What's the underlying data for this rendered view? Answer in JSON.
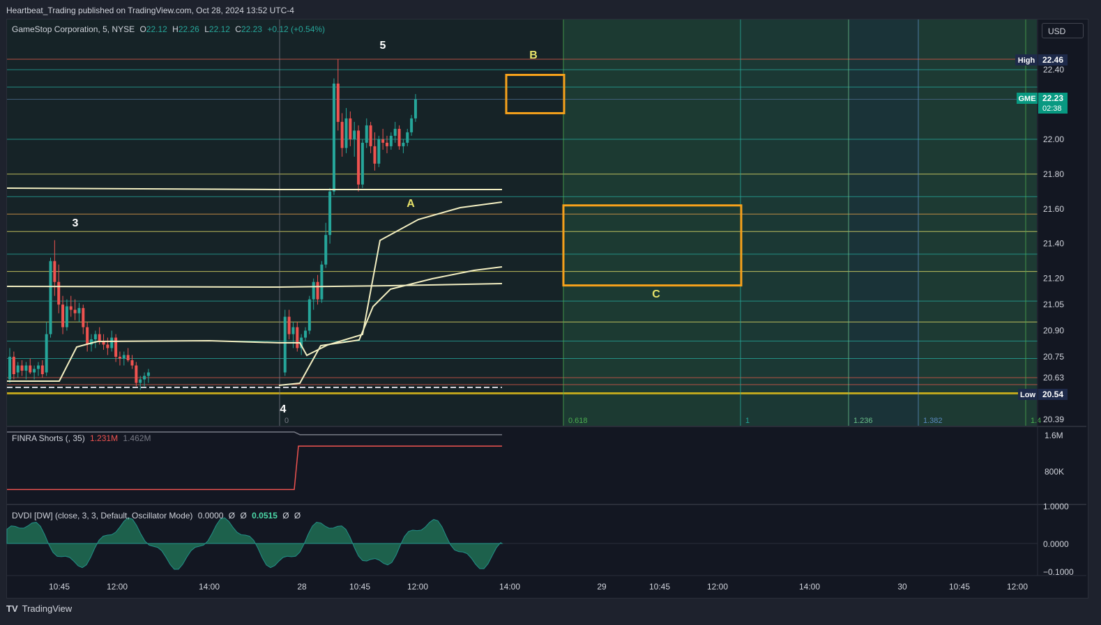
{
  "header": {
    "publisher_line": "Heartbeat_Trading published on TradingView.com, Oct 28, 2024 13:52 UTC-4"
  },
  "legend": {
    "symbol": "GameStop Corporation, 5, NYSE",
    "o_label": "O",
    "o_value": "22.12",
    "h_label": "H",
    "h_value": "22.26",
    "l_label": "L",
    "l_value": "22.12",
    "c_label": "C",
    "c_value": "22.23",
    "change": "+0.12 (+0.54%)"
  },
  "currency_button": "USD",
  "price_axis": {
    "ticks": [
      "22.40",
      "22.00",
      "21.80",
      "21.60",
      "21.40",
      "21.20",
      "21.05",
      "20.90",
      "20.75",
      "20.63",
      "20.39"
    ],
    "high_label": "High",
    "high_value": "22.46",
    "symbol_tag": "GME",
    "last_price": "22.23",
    "countdown": "02:38",
    "low_label": "Low",
    "low_value": "20.54"
  },
  "time_axis": {
    "ticks": [
      "10:45",
      "12:00",
      "14:00",
      "28",
      "10:45",
      "12:00",
      "14:00",
      "29",
      "10:45",
      "12:00",
      "14:00",
      "30",
      "10:45",
      "12:00"
    ]
  },
  "fib_time_labels": [
    "0",
    "0.618",
    "1",
    "1.236",
    "1.382",
    "1.4"
  ],
  "wave_labels": [
    "5",
    "3",
    "4",
    "A",
    "B",
    "C"
  ],
  "finra": {
    "title": "FINRA Shorts (, 35)",
    "value_red": "1.231M",
    "value_gray": "1.462M",
    "axis_ticks": [
      "1.6M",
      "800K"
    ]
  },
  "dvdi": {
    "title": "DVDI [DW] (close, 3, 3, Default, Oscillator Mode)",
    "v1": "0.0000",
    "s1": "Ø",
    "s2": "Ø",
    "v2": "0.0515",
    "s3": "Ø",
    "s4": "Ø",
    "axis_ticks": [
      "1.0000",
      "0.0000",
      "−0.1000"
    ]
  },
  "footer": {
    "brand": "TradingView"
  },
  "colors": {
    "background": "#131722",
    "up": "#26a69a",
    "down": "#ef5350",
    "annotation_orange": "#f7a21b",
    "level_yellow": "#e8e36a",
    "vwap_cream": "#f3efc2",
    "fib_green": "#1f4a3e"
  },
  "chart_data": {
    "type": "candlestick",
    "symbol": "GME",
    "interval": "5",
    "ylim": [
      20.39,
      22.52
    ],
    "last_price": 22.23,
    "session_high": 22.46,
    "session_low": 20.54,
    "candles_approx": [
      {
        "o": 20.62,
        "h": 20.8,
        "l": 20.6,
        "c": 20.75
      },
      {
        "o": 20.75,
        "h": 20.78,
        "l": 20.62,
        "c": 20.65
      },
      {
        "o": 20.66,
        "h": 20.72,
        "l": 20.63,
        "c": 20.7
      },
      {
        "o": 20.7,
        "h": 20.73,
        "l": 20.64,
        "c": 20.67
      },
      {
        "o": 20.67,
        "h": 20.72,
        "l": 20.62,
        "c": 20.7
      },
      {
        "o": 20.7,
        "h": 20.74,
        "l": 20.65,
        "c": 20.66
      },
      {
        "o": 20.66,
        "h": 20.7,
        "l": 20.62,
        "c": 20.68
      },
      {
        "o": 20.68,
        "h": 20.72,
        "l": 20.64,
        "c": 20.7
      },
      {
        "o": 20.7,
        "h": 20.73,
        "l": 20.63,
        "c": 20.65
      },
      {
        "o": 20.66,
        "h": 20.95,
        "l": 20.64,
        "c": 20.88
      },
      {
        "o": 20.88,
        "h": 21.32,
        "l": 20.86,
        "c": 21.3
      },
      {
        "o": 21.3,
        "h": 21.42,
        "l": 21.1,
        "c": 21.18
      },
      {
        "o": 21.18,
        "h": 21.28,
        "l": 21.0,
        "c": 21.05
      },
      {
        "o": 21.05,
        "h": 21.1,
        "l": 20.88,
        "c": 20.92
      },
      {
        "o": 20.92,
        "h": 21.08,
        "l": 20.9,
        "c": 21.04
      },
      {
        "o": 21.04,
        "h": 21.1,
        "l": 20.98,
        "c": 21.02
      },
      {
        "o": 21.02,
        "h": 21.08,
        "l": 20.96,
        "c": 21.0
      },
      {
        "o": 21.0,
        "h": 21.06,
        "l": 20.95,
        "c": 21.03
      },
      {
        "o": 21.03,
        "h": 21.05,
        "l": 20.88,
        "c": 20.92
      },
      {
        "o": 20.92,
        "h": 20.95,
        "l": 20.78,
        "c": 20.82
      },
      {
        "o": 20.82,
        "h": 20.88,
        "l": 20.78,
        "c": 20.85
      },
      {
        "o": 20.85,
        "h": 20.9,
        "l": 20.8,
        "c": 20.88
      },
      {
        "o": 20.88,
        "h": 20.92,
        "l": 20.82,
        "c": 20.84
      },
      {
        "o": 20.84,
        "h": 20.88,
        "l": 20.79,
        "c": 20.82
      },
      {
        "o": 20.82,
        "h": 20.86,
        "l": 20.76,
        "c": 20.8
      },
      {
        "o": 20.8,
        "h": 20.9,
        "l": 20.78,
        "c": 20.86
      },
      {
        "o": 20.86,
        "h": 20.88,
        "l": 20.72,
        "c": 20.75
      },
      {
        "o": 20.75,
        "h": 20.78,
        "l": 20.7,
        "c": 20.74
      },
      {
        "o": 20.74,
        "h": 20.78,
        "l": 20.7,
        "c": 20.76
      },
      {
        "o": 20.76,
        "h": 20.8,
        "l": 20.72,
        "c": 20.73
      },
      {
        "o": 20.73,
        "h": 20.76,
        "l": 20.68,
        "c": 20.7
      },
      {
        "o": 20.7,
        "h": 20.72,
        "l": 20.58,
        "c": 20.6
      },
      {
        "o": 20.6,
        "h": 20.64,
        "l": 20.56,
        "c": 20.62
      },
      {
        "o": 20.62,
        "h": 20.66,
        "l": 20.58,
        "c": 20.64
      },
      {
        "o": 20.64,
        "h": 20.68,
        "l": 20.6,
        "c": 20.66
      },
      {
        "o": 20.66,
        "h": 21.02,
        "l": 20.64,
        "c": 20.98
      },
      {
        "o": 20.98,
        "h": 21.02,
        "l": 20.85,
        "c": 20.88
      },
      {
        "o": 20.88,
        "h": 20.95,
        "l": 20.8,
        "c": 20.92
      },
      {
        "o": 20.92,
        "h": 20.95,
        "l": 20.78,
        "c": 20.8
      },
      {
        "o": 20.8,
        "h": 20.88,
        "l": 20.76,
        "c": 20.86
      },
      {
        "o": 20.86,
        "h": 20.92,
        "l": 20.84,
        "c": 20.9
      },
      {
        "o": 20.9,
        "h": 21.1,
        "l": 20.88,
        "c": 21.08
      },
      {
        "o": 21.08,
        "h": 21.2,
        "l": 21.02,
        "c": 21.18
      },
      {
        "o": 21.18,
        "h": 21.22,
        "l": 21.05,
        "c": 21.08
      },
      {
        "o": 21.08,
        "h": 21.3,
        "l": 21.06,
        "c": 21.28
      },
      {
        "o": 21.28,
        "h": 21.52,
        "l": 21.26,
        "c": 21.45
      },
      {
        "o": 21.45,
        "h": 21.72,
        "l": 21.4,
        "c": 21.7
      },
      {
        "o": 21.7,
        "h": 22.35,
        "l": 21.68,
        "c": 22.32
      },
      {
        "o": 22.32,
        "h": 22.46,
        "l": 22.05,
        "c": 22.1
      },
      {
        "o": 22.1,
        "h": 22.15,
        "l": 21.9,
        "c": 21.95
      },
      {
        "o": 21.95,
        "h": 22.18,
        "l": 21.92,
        "c": 22.12
      },
      {
        "o": 22.12,
        "h": 22.16,
        "l": 21.96,
        "c": 22.0
      },
      {
        "o": 22.0,
        "h": 22.1,
        "l": 21.9,
        "c": 22.05
      },
      {
        "o": 22.05,
        "h": 22.08,
        "l": 21.7,
        "c": 21.74
      },
      {
        "o": 21.74,
        "h": 22.0,
        "l": 21.72,
        "c": 21.98
      },
      {
        "o": 21.98,
        "h": 22.12,
        "l": 21.95,
        "c": 22.08
      },
      {
        "o": 22.08,
        "h": 22.1,
        "l": 21.92,
        "c": 21.96
      },
      {
        "o": 21.96,
        "h": 22.04,
        "l": 21.82,
        "c": 21.86
      },
      {
        "o": 21.86,
        "h": 22.02,
        "l": 21.84,
        "c": 22.0
      },
      {
        "o": 22.0,
        "h": 22.06,
        "l": 21.94,
        "c": 21.98
      },
      {
        "o": 21.98,
        "h": 22.02,
        "l": 21.92,
        "c": 21.96
      },
      {
        "o": 21.96,
        "h": 22.04,
        "l": 21.94,
        "c": 22.02
      },
      {
        "o": 22.02,
        "h": 22.1,
        "l": 21.98,
        "c": 22.06
      },
      {
        "o": 22.06,
        "h": 22.08,
        "l": 21.94,
        "c": 21.96
      },
      {
        "o": 21.96,
        "h": 22.0,
        "l": 21.92,
        "c": 21.98
      },
      {
        "o": 21.98,
        "h": 22.06,
        "l": 21.96,
        "c": 22.04
      },
      {
        "o": 22.04,
        "h": 22.14,
        "l": 22.02,
        "c": 22.12
      },
      {
        "o": 22.12,
        "h": 22.26,
        "l": 22.1,
        "c": 22.23
      }
    ],
    "levels": [
      22.46,
      22.4,
      22.3,
      22.23,
      22.0,
      21.8,
      21.67,
      21.57,
      21.47,
      21.34,
      21.24,
      21.07,
      20.95,
      20.84,
      20.74,
      20.63,
      20.59,
      20.54
    ],
    "zones": [
      {
        "label": "B",
        "top": 22.37,
        "bottom": 22.15
      },
      {
        "label": "C",
        "top": 21.62,
        "bottom": 21.16
      }
    ],
    "finra_shorts": {
      "before": 1.231,
      "after": 1.462,
      "unit": "M",
      "ylim": [
        0,
        1.6
      ]
    },
    "dvdi_ylim": [
      -0.1,
      1.0
    ]
  }
}
